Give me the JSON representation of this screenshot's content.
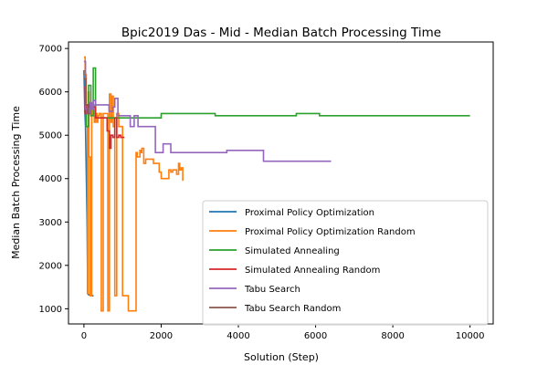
{
  "chart_data": {
    "type": "line",
    "title": "Bpic2019 Das - Mid - Median Batch Processing Time",
    "xlabel": "Solution (Step)",
    "ylabel": "Median Batch Processing Time",
    "xlim": [
      -400,
      10600
    ],
    "ylim": [
      650,
      7150
    ],
    "xticks": [
      0,
      2000,
      4000,
      6000,
      8000,
      10000
    ],
    "yticks": [
      1000,
      2000,
      3000,
      4000,
      5000,
      6000,
      7000
    ],
    "grid": false,
    "legend_position": "lower-right",
    "series": [
      {
        "name": "Proximal Policy Optimization",
        "color": "#1f77b4",
        "x": [
          0,
          20,
          40,
          60,
          80,
          100,
          120,
          150,
          180,
          200,
          250
        ],
        "y": [
          6500,
          5600,
          5200,
          4200,
          3000,
          1350,
          1320,
          1320,
          1300,
          1300,
          1300
        ]
      },
      {
        "name": "Proximal Policy Optimization Random",
        "color": "#ff7f0e",
        "x": [
          0,
          30,
          30,
          60,
          60,
          90,
          90,
          110,
          110,
          130,
          130,
          160,
          160,
          200,
          200,
          240,
          240,
          270,
          270,
          300,
          300,
          340,
          340,
          360,
          360,
          400,
          400,
          450,
          450,
          500,
          500,
          620,
          620,
          660,
          660,
          700,
          700,
          720,
          720,
          760,
          760,
          800,
          800,
          850,
          850,
          900,
          900,
          1000,
          1000,
          1150,
          1150,
          1350,
          1350,
          1380,
          1380,
          1450,
          1450,
          1480,
          1480,
          1500,
          1500,
          1550,
          1550,
          1600,
          1600,
          1650,
          1650,
          1700,
          1700,
          1800,
          1800,
          1950,
          1950,
          2000,
          2000,
          2050,
          2050,
          2100,
          2100,
          2200,
          2200,
          2250,
          2250,
          2300,
          2300,
          2400,
          2400,
          2450,
          2450,
          2480,
          2480,
          2520,
          2520,
          2560,
          2560
        ],
        "y": [
          6800,
          6800,
          6400,
          6400,
          5200,
          5200,
          1350,
          1350,
          6000,
          6000,
          4500,
          4500,
          1300,
          1300,
          5600,
          5600,
          5700,
          5700,
          5300,
          5300,
          5500,
          5500,
          5300,
          5300,
          5450,
          5450,
          5500,
          5500,
          950,
          950,
          5500,
          5500,
          950,
          950,
          5950,
          5950,
          5300,
          5300,
          5900,
          5900,
          5200,
          5200,
          1300,
          1300,
          5500,
          5500,
          5200,
          5200,
          1300,
          1300,
          950,
          950,
          4600,
          4600,
          4500,
          4500,
          4650,
          4650,
          4600,
          4600,
          4700,
          4700,
          4350,
          4350,
          4450,
          4450,
          4450,
          4450,
          4450,
          4450,
          4350,
          4350,
          4150,
          4150,
          4000,
          4000,
          4000,
          4000,
          4000,
          4000,
          4200,
          4200,
          4150,
          4150,
          4200,
          4200,
          4100,
          4100,
          4350,
          4350,
          4200,
          4200,
          4250,
          4250,
          3950
        ]
      },
      {
        "name": "Simulated Annealing",
        "color": "#2ca02c",
        "x": [
          0,
          60,
          60,
          120,
          120,
          180,
          180,
          240,
          240,
          300,
          300,
          360,
          360,
          1000,
          1000,
          2000,
          2000,
          3400,
          3400,
          5500,
          5500,
          6100,
          6100,
          10000
        ],
        "y": [
          5550,
          5550,
          5200,
          5200,
          6150,
          6150,
          5450,
          5450,
          6550,
          6550,
          5400,
          5400,
          5400,
          5400,
          5400,
          5400,
          5500,
          5500,
          5450,
          5450,
          5500,
          5500,
          5450,
          5450
        ]
      },
      {
        "name": "Simulated Annealing Random",
        "color": "#d62728",
        "x": [
          0,
          30,
          30,
          60,
          60,
          120,
          120,
          300,
          300,
          600,
          600,
          660,
          660,
          700,
          700,
          750,
          750,
          800,
          800,
          850,
          850,
          900,
          900,
          950,
          950,
          1050
        ],
        "y": [
          6100,
          6100,
          5500,
          5500,
          5700,
          5700,
          5650,
          5650,
          5400,
          5400,
          5100,
          5100,
          4700,
          4700,
          5000,
          5000,
          4950,
          4950,
          5400,
          5400,
          4950,
          4950,
          5000,
          5000,
          4950,
          4950
        ]
      },
      {
        "name": "Tabu Search",
        "color": "#9467bd",
        "x": [
          0,
          40,
          40,
          80,
          80,
          160,
          160,
          200,
          200,
          240,
          240,
          300,
          300,
          400,
          400,
          650,
          650,
          750,
          750,
          800,
          800,
          880,
          880,
          1200,
          1200,
          1300,
          1300,
          1400,
          1400,
          1850,
          1850,
          2050,
          2050,
          2250,
          2250,
          3700,
          3700,
          4650,
          4650,
          6400
        ],
        "y": [
          6700,
          6700,
          5600,
          5600,
          5500,
          5500,
          5750,
          5750,
          5600,
          5600,
          5800,
          5800,
          5700,
          5700,
          5700,
          5700,
          5550,
          5550,
          5650,
          5650,
          5850,
          5850,
          5450,
          5450,
          5200,
          5200,
          5450,
          5450,
          5200,
          5200,
          4600,
          4600,
          4800,
          4800,
          4600,
          4600,
          4650,
          4650,
          4400,
          4400
        ]
      },
      {
        "name": "Tabu Search Random",
        "color": "#8c564b",
        "x": [
          0,
          50,
          50,
          100,
          100,
          150
        ],
        "y": [
          6300,
          6300,
          5700,
          5700,
          5500,
          5500
        ]
      }
    ]
  }
}
